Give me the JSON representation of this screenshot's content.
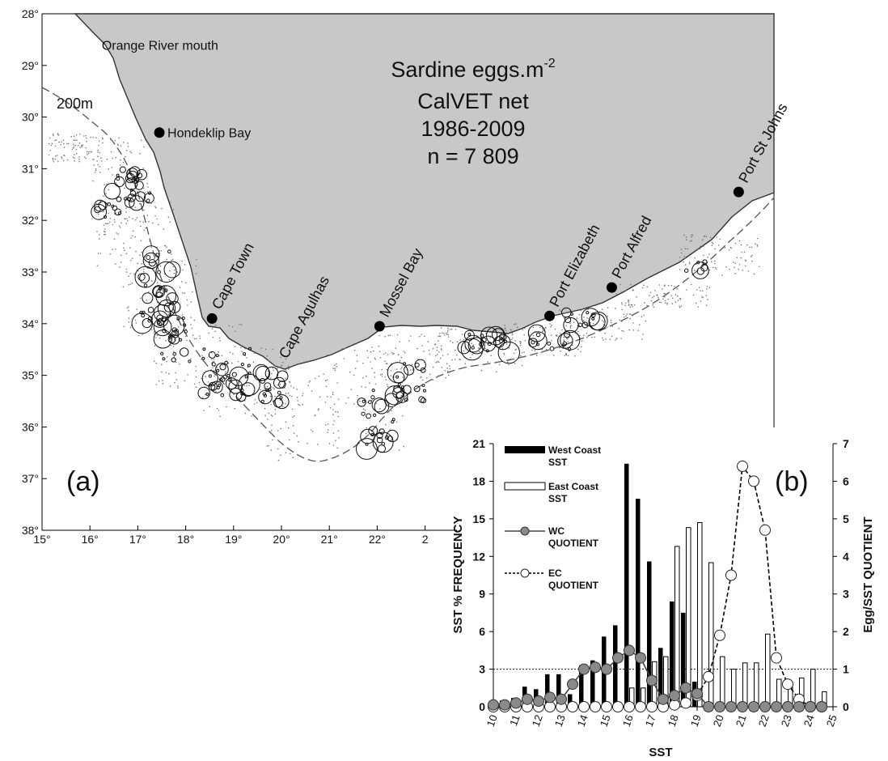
{
  "panel_a": {
    "label": "(a)",
    "title_lines": [
      "Sardine eggs.m",
      "CalVET net",
      "1986-2009",
      "n = 7 809"
    ],
    "title_superscript": "-2",
    "isobath_label": "200m",
    "lat_ticks": [
      "28°",
      "29°",
      "30°",
      "31°",
      "32°",
      "33°",
      "34°",
      "35°",
      "36°",
      "37°",
      "38°"
    ],
    "lon_ticks": [
      "15°",
      "16°",
      "17°",
      "18°",
      "19°",
      "20°",
      "21°",
      "22°",
      "2"
    ],
    "places": [
      {
        "name": "Orange River mouth",
        "lon": 16.45,
        "lat": 28.6,
        "dot": false,
        "rot": 0
      },
      {
        "name": "Hondeklip Bay",
        "lon": 17.45,
        "lat": 30.3,
        "dot": true,
        "rot": 0
      },
      {
        "name": "Cape Town",
        "lon": 18.55,
        "lat": 33.9,
        "dot": true,
        "rot": -62
      },
      {
        "name": "Cape Agulhas",
        "lon": 19.95,
        "lat": 34.85,
        "dot": false,
        "rot": -62
      },
      {
        "name": "Mossel Bay",
        "lon": 22.05,
        "lat": 34.05,
        "dot": true,
        "rot": -62
      },
      {
        "name": "Port Elizabeth",
        "lon": 25.6,
        "lat": 33.85,
        "dot": true,
        "rot": -62
      },
      {
        "name": "Port Alfred",
        "lon": 26.9,
        "lat": 33.3,
        "dot": true,
        "rot": -62
      },
      {
        "name": "Port St Johns",
        "lon": 29.55,
        "lat": 31.45,
        "dot": true,
        "rot": -62
      }
    ]
  },
  "panel_b": {
    "label": "(b)",
    "legend": [
      {
        "line1": "West Coast",
        "line2": "SST",
        "kind": "bar-filled"
      },
      {
        "line1": "East Coast",
        "line2": "SST",
        "kind": "bar-open"
      },
      {
        "line1": "WC",
        "line2": "QUOTIENT",
        "kind": "line-filled"
      },
      {
        "line1": "EC",
        "line2": "QUOTIENT",
        "kind": "line-open"
      }
    ]
  },
  "chart_data": {
    "type": "bar",
    "xlabel": "SST",
    "ylabel": "SST % FREQUENCY",
    "y2label": "Egg/SST QUOTIENT",
    "x_ticks": [
      "10",
      "11",
      "12",
      "13",
      "14",
      "15",
      "16",
      "17",
      "18",
      "19",
      "20",
      "21",
      "22",
      "23",
      "24",
      "25"
    ],
    "ylim": [
      0,
      21
    ],
    "y_ticks": [
      "0",
      "3",
      "6",
      "9",
      "12",
      "15",
      "18",
      "21"
    ],
    "y2lim": [
      0,
      7
    ],
    "y2_ticks": [
      "0",
      "1",
      "2",
      "3",
      "4",
      "5",
      "6",
      "7"
    ],
    "reference_line_y2": 1,
    "x": [
      10,
      10.5,
      11,
      11.5,
      12,
      12.5,
      13,
      13.5,
      14,
      14.5,
      15,
      15.5,
      16,
      16.5,
      17,
      17.5,
      18,
      18.5,
      19,
      19.5,
      20,
      20.5,
      21,
      21.5,
      22,
      22.5,
      23,
      23.5,
      24,
      24.5
    ],
    "series": [
      {
        "name": "West Coast SST",
        "type": "bar",
        "axis": "left",
        "values": [
          0.3,
          0.5,
          0.7,
          1.6,
          1.4,
          2.6,
          2.6,
          1.0,
          3.3,
          3.7,
          5.6,
          6.5,
          19.4,
          16.6,
          11.6,
          4.7,
          8.4,
          7.5,
          2.0,
          0,
          0,
          0,
          0,
          0,
          0,
          0,
          0,
          0,
          0,
          0
        ]
      },
      {
        "name": "East Coast SST",
        "type": "bar",
        "axis": "left",
        "values": [
          0,
          0,
          0,
          0,
          0,
          0,
          0,
          0,
          0,
          0,
          0,
          0,
          1.5,
          1.5,
          3.6,
          4.0,
          12.8,
          14.3,
          14.7,
          11.5,
          4.0,
          3.0,
          3.5,
          3.5,
          5.8,
          2.2,
          1.6,
          2.3,
          3.0,
          1.2
        ]
      },
      {
        "name": "WC QUOTIENT",
        "type": "line",
        "axis": "right",
        "values": [
          0.05,
          0.05,
          0.1,
          0.2,
          0.15,
          0.25,
          0.2,
          0.6,
          1.0,
          1.05,
          1.0,
          1.3,
          1.5,
          1.3,
          0.7,
          0.2,
          0.3,
          0.5,
          0.35,
          0,
          0,
          0,
          0,
          0,
          0,
          0,
          0,
          0,
          0,
          0
        ]
      },
      {
        "name": "EC QUOTIENT",
        "type": "line",
        "axis": "right",
        "values": [
          0,
          0,
          0,
          0,
          0,
          0,
          0,
          0,
          0,
          0,
          0,
          0,
          0,
          0,
          0,
          0,
          0.05,
          0.1,
          0.3,
          0.8,
          1.9,
          3.5,
          6.4,
          6.0,
          4.7,
          1.3,
          0.6,
          0.2,
          0,
          0
        ]
      }
    ]
  }
}
